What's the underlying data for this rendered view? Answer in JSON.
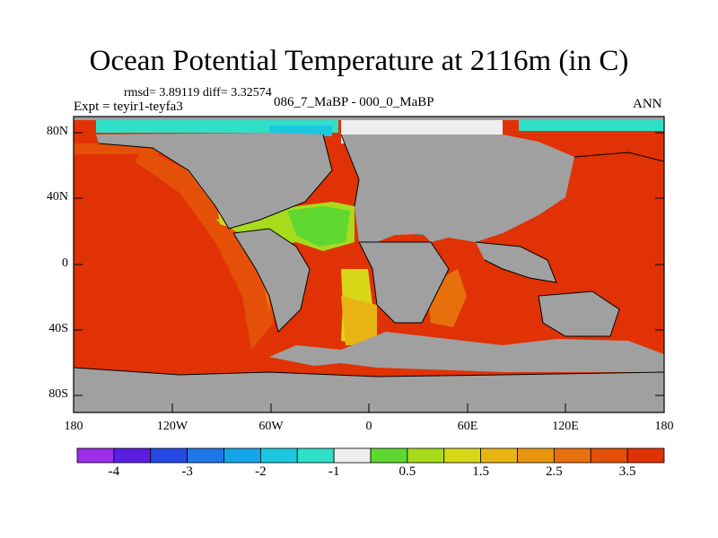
{
  "title": "Ocean Potential Temperature at 2116m (in C)",
  "stats_text": "rmsd= 3.89119 diff= 3.32574",
  "expt_text": "Expt = teyir1-teyfa3",
  "period_text": "086_7_MaBP - 000_0_MaBP",
  "season": "ANN",
  "lat_ticks": [
    "80N",
    "40N",
    "0",
    "40S",
    "80S"
  ],
  "lon_ticks": [
    "180",
    "120W",
    "60W",
    "0",
    "60E",
    "120E",
    "180"
  ],
  "colorbar": {
    "colors": [
      "#9b2fe8",
      "#5a1ee0",
      "#2748e6",
      "#1f78e8",
      "#15a6ea",
      "#1cc8e0",
      "#2ee0c8",
      "#eeeeee",
      "#5ed830",
      "#a6dc1c",
      "#d8d818",
      "#e8b414",
      "#e89410",
      "#e8700c",
      "#e45008",
      "#e03204"
    ],
    "labels": [
      "-4",
      "-3",
      "-2",
      "-1",
      "0.5",
      "1.5",
      "2.5",
      "3.5"
    ]
  }
}
